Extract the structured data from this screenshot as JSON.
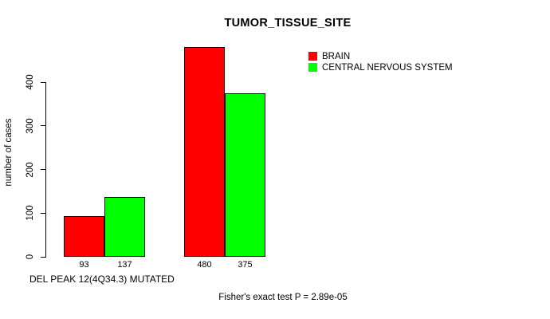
{
  "chart_data": {
    "type": "bar",
    "title": "TUMOR_TISSUE_SITE",
    "xlabel": "DEL PEAK 12(4Q34.3) MUTATED",
    "ylabel": "number of cases",
    "series": [
      {
        "name": "BRAIN",
        "color": "#FF0000",
        "values": [
          93,
          480
        ]
      },
      {
        "name": "CENTRAL NERVOUS SYSTEM",
        "color": "#00FF00",
        "values": [
          137,
          375
        ]
      }
    ],
    "group_count": 2,
    "bar_value_labels": [
      [
        93,
        137
      ],
      [
        480,
        375
      ]
    ],
    "yticks": [
      0,
      100,
      200,
      300,
      400
    ],
    "ylim": [
      0,
      480
    ],
    "grid": false,
    "legend_position": "top-right",
    "annotation": "Fisher's exact test P = 2.89e-05",
    "axis_color": "#000000",
    "text_color": "#000000",
    "background_color": "#FFFFFF",
    "bar_border_color": "#000000"
  }
}
